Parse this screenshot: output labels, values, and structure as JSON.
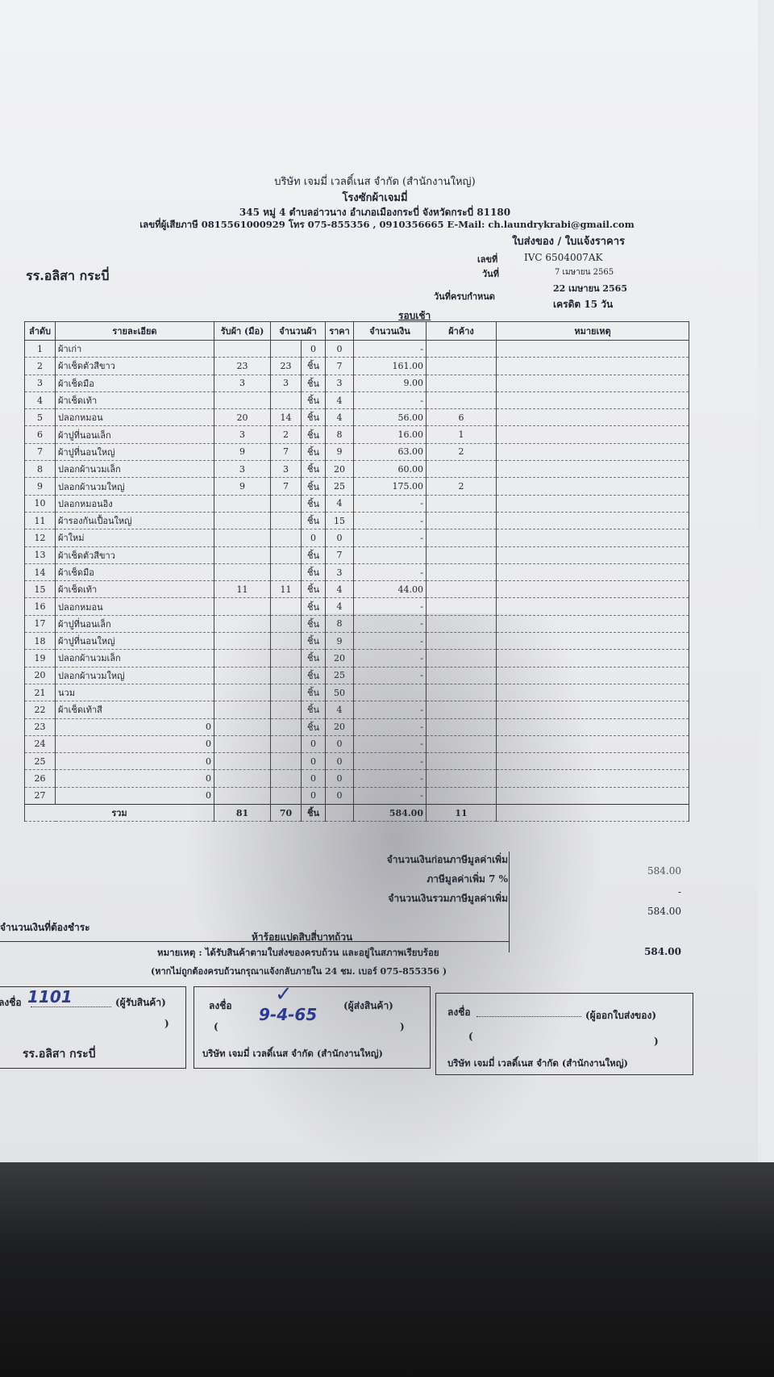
{
  "company": {
    "name": "บริษัท เจมมี่ เวลดิ์เนส จำกัด (สำนักงานใหญ่)",
    "branch": "โรงซักผ้าเจมมี่",
    "address": "345 หมู่ 4 ตำบลอ่าวนาง อำเภอเมืองกระบี่ จังหวัดกระบี่ 81180",
    "contact": "เลขที่ผู้เสียภาษี 0815561000929 โทร 075-855356 , 0910356665 E-Mail: ch.laundrykrabi@gmail.com"
  },
  "doc_type": "ใบส่งของ / ใบแจ้งราคาร",
  "customer": "รร.อลิสา กระบี่",
  "meta": {
    "number_label": "เลขที่",
    "number": "IVC 6504007AK",
    "date_label": "วันที่",
    "date": "7 เมษายน 2565",
    "due_label": "วันที่ครบกำหนด",
    "due": "22 เมษายน 2565",
    "credit": "เครดิต 15 วัน"
  },
  "round": "รอบเช้า",
  "columns": [
    "ลำดับ",
    "รายละเอียด",
    "รับผ้า (มือ)",
    "จำนวนผ้า",
    "ราคา",
    "จำนวนเงิน",
    "ผ้าค้าง",
    "หมายเหตุ"
  ],
  "rows": [
    [
      "1",
      "ผ้าเก่า",
      "",
      "",
      "0",
      "0",
      "-",
      ""
    ],
    [
      "2",
      "ผ้าเช็ดตัวสีขาว",
      "23",
      "23",
      "ชิ้น",
      "7",
      "161.00",
      ""
    ],
    [
      "3",
      "ผ้าเช็ดมือ",
      "3",
      "3",
      "ชิ้น",
      "3",
      "9.00",
      ""
    ],
    [
      "4",
      "ผ้าเช็ดเท้า",
      "",
      "",
      "ชิ้น",
      "4",
      "-",
      ""
    ],
    [
      "5",
      "ปลอกหมอน",
      "20",
      "14",
      "ชิ้น",
      "4",
      "56.00",
      "6"
    ],
    [
      "6",
      "ผ้าปูที่นอนเล็ก",
      "3",
      "2",
      "ชิ้น",
      "8",
      "16.00",
      "1"
    ],
    [
      "7",
      "ผ้าปูที่นอนใหญ่",
      "9",
      "7",
      "ชิ้น",
      "9",
      "63.00",
      "2"
    ],
    [
      "8",
      "ปลอกผ้านวมเล็ก",
      "3",
      "3",
      "ชิ้น",
      "20",
      "60.00",
      ""
    ],
    [
      "9",
      "ปลอกผ้านวมใหญ่",
      "9",
      "7",
      "ชิ้น",
      "25",
      "175.00",
      "2"
    ],
    [
      "10",
      "ปลอกหมอนอิง",
      "",
      "",
      "ชิ้น",
      "4",
      "-",
      ""
    ],
    [
      "11",
      "ผ้ารองกันเปื้อนใหญ่",
      "",
      "",
      "ชิ้น",
      "15",
      "-",
      ""
    ],
    [
      "12",
      "ผ้าใหม่",
      "",
      "",
      "0",
      "0",
      "-",
      ""
    ],
    [
      "13",
      "ผ้าเช็ดตัวสีขาว",
      "",
      "",
      "ชิ้น",
      "7",
      "",
      ""
    ],
    [
      "14",
      "ผ้าเช็ดมือ",
      "",
      "",
      "ชิ้น",
      "3",
      "-",
      ""
    ],
    [
      "15",
      "ผ้าเช็ดเท้า",
      "11",
      "11",
      "ชิ้น",
      "4",
      "44.00",
      ""
    ],
    [
      "16",
      "ปลอกหมอน",
      "",
      "",
      "ชิ้น",
      "4",
      "-",
      ""
    ],
    [
      "17",
      "ผ้าปูที่นอนเล็ก",
      "",
      "",
      "ชิ้น",
      "8",
      "-",
      ""
    ],
    [
      "18",
      "ผ้าปูที่นอนใหญ่",
      "",
      "",
      "ชิ้น",
      "9",
      "-",
      ""
    ],
    [
      "19",
      "ปลอกผ้านวมเล็ก",
      "",
      "",
      "ชิ้น",
      "20",
      "-",
      ""
    ],
    [
      "20",
      "ปลอกผ้านวมใหญ่",
      "",
      "",
      "ชิ้น",
      "25",
      "-",
      ""
    ],
    [
      "21",
      "นวม",
      "",
      "",
      "ชิ้น",
      "50",
      "",
      ""
    ],
    [
      "22",
      "ผ้าเช็ดเท้าสี",
      "",
      "",
      "ชิ้น",
      "4",
      "-",
      ""
    ],
    [
      "23",
      "0",
      "",
      "",
      "ชิ้น",
      "20",
      "-",
      ""
    ],
    [
      "24",
      "0",
      "",
      "",
      "0",
      "0",
      "-",
      ""
    ],
    [
      "25",
      "0",
      "",
      "",
      "0",
      "0",
      "-",
      ""
    ],
    [
      "26",
      "0",
      "",
      "",
      "0",
      "0",
      "-",
      ""
    ],
    [
      "27",
      "0",
      "",
      "",
      "0",
      "0",
      "-",
      ""
    ]
  ],
  "total": {
    "label": "รวม",
    "received": "81",
    "qty": "70",
    "unit": "ชิ้น",
    "amount": "584.00",
    "pending": "11"
  },
  "summary": {
    "before_vat_label": "จำนวนเงินก่อนภาษีมูลค่าเพิ่ม",
    "before_vat": "584.00",
    "vat_label": "ภาษีมูลค่าเพิ่ม 7 %",
    "vat": "-",
    "with_vat_label": "จำนวนเงินรวมภาษีมูลค่าเพิ่ม",
    "with_vat": "584.00",
    "payable_label": "จำนวนเงินที่ต้องชำระ",
    "payable_words": "ห้าร้อยแปดสิบสี่บาทถ้วน",
    "payable": "584.00"
  },
  "note1": "หมายเหตุ : ได้รับสินค้าตามใบส่งของครบถ้วน และอยู่ในสภาพเรียบร้อย",
  "note2": "(หากไม่ถูกต้องครบถ้วนกรุณาแจ้งกลับภายใน 24 ชม. เบอร์ 075-855356 )",
  "signatures": [
    {
      "sign": "ลงชื่อ",
      "role": "(ผู้รับสินค้า)",
      "handwriting": "1101",
      "org": "รร.อลิสา กระบี่",
      "paren_open": "(",
      "paren_close": ")"
    },
    {
      "sign": "ลงชื่อ",
      "role": "(ผู้ส่งสินค้า)",
      "handwriting": "✓",
      "date_handwriting": "9-4-65",
      "org": "บริษัท เจมมี่ เวลดิ์เนส จำกัด (สำนักงานใหญ่)",
      "paren_open": "(",
      "paren_close": ")"
    },
    {
      "sign": "ลงชื่อ",
      "role": "(ผู้ออกใบส่งของ)",
      "org": "บริษัท เจมมี่ เวลดิ์เนส จำกัด (สำนักงานใหญ่)",
      "paren_open": "(",
      "paren_close": ")"
    }
  ]
}
